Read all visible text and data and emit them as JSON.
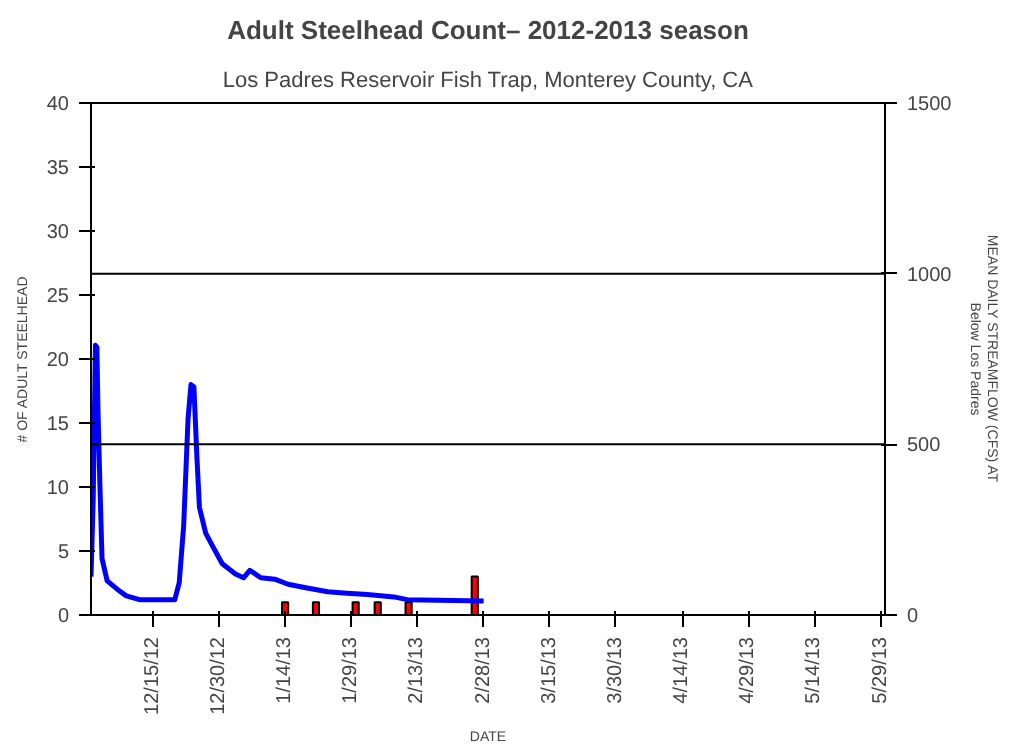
{
  "chart_data": {
    "type": "bar",
    "title": "Adult Steelhead Count– 2012-2013 season",
    "subtitle": "Los Padres Reservoir Fish Trap, Monterey County, CA",
    "xlabel": "DATE",
    "ylabel": "# OF ADULT STEELHEAD",
    "y2label": "MEAN DAILY STREAMFLOW (CFS) AT\nBelow Los Padres",
    "xlim": [
      "2012-12-01",
      "2013-05-30"
    ],
    "xticks": [
      {
        "value": "2012-12-15",
        "label": "12/15/12"
      },
      {
        "value": "2012-12-30",
        "label": "12/30/12"
      },
      {
        "value": "2013-01-14",
        "label": "1/14/13"
      },
      {
        "value": "2013-01-29",
        "label": "1/29/13"
      },
      {
        "value": "2013-02-13",
        "label": "2/13/13"
      },
      {
        "value": "2013-02-28",
        "label": "2/28/13"
      },
      {
        "value": "2013-03-15",
        "label": "3/15/13"
      },
      {
        "value": "2013-03-30",
        "label": "3/30/13"
      },
      {
        "value": "2013-04-14",
        "label": "4/14/13"
      },
      {
        "value": "2013-04-29",
        "label": "4/29/13"
      },
      {
        "value": "2013-05-14",
        "label": "5/14/13"
      },
      {
        "value": "2013-05-29",
        "label": "5/29/13"
      }
    ],
    "ylim": [
      0,
      40
    ],
    "yticks": [
      0,
      5,
      10,
      15,
      20,
      25,
      30,
      35,
      40
    ],
    "y2lim": [
      0,
      1500
    ],
    "y2ticks": [
      0,
      500,
      1000,
      1500
    ],
    "ref_lines": [
      {
        "axis": "y2",
        "value": 500,
        "color": "#000000"
      },
      {
        "axis": "y2",
        "value": 1000,
        "color": "#000000"
      }
    ],
    "series": [
      {
        "color": "#ff0000",
        "x": [
          "2013-01-14",
          "2013-01-21",
          "2013-01-30",
          "2013-02-04",
          "2013-02-11",
          "2013-02-26"
        ],
        "values": [
          1,
          1,
          1,
          1,
          1,
          3
        ]
      },
      {
        "type": "line",
        "axis": "y2",
        "color": "#0000ff",
        "x": [
          "2012-12-01T00:00",
          "2012-12-01T12:00",
          "2012-12-02T00:00",
          "2012-12-02T08:00",
          "2012-12-02T14:00",
          "2012-12-03T00:00",
          "2012-12-03T12:00",
          "2012-12-04T16:00",
          "2012-12-07",
          "2012-12-09",
          "2012-12-12",
          "2012-12-20",
          "2012-12-21",
          "2012-12-22",
          "2012-12-23T00:00",
          "2012-12-23T16:00",
          "2012-12-24T08:00",
          "2012-12-25T00:00",
          "2012-12-25T14:00",
          "2012-12-27",
          "2012-12-28T12:00",
          "2012-12-30T18:00",
          "2013-01-02T18:00",
          "2013-01-04T14:00",
          "2013-01-06",
          "2013-01-08T12:00",
          "2013-01-11T16:00",
          "2013-01-14T16:00",
          "2013-01-19",
          "2013-01-23T16:00",
          "2013-01-28",
          "2013-02-01T16:00",
          "2013-02-07T16:00",
          "2013-02-10T16:00",
          "2013-02-28"
        ],
        "values": [
          112,
          340,
          790,
          785,
          600,
          390,
          165,
          100,
          75,
          56,
          45,
          45,
          95,
          260,
          575,
          675,
          668,
          465,
          315,
          240,
          203,
          150,
          120,
          109,
          131,
          109,
          105,
          90,
          79,
          68,
          64,
          60,
          53,
          45,
          41
        ]
      }
    ]
  }
}
